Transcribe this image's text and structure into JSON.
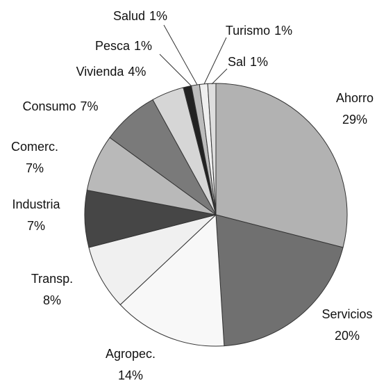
{
  "chart_data": {
    "type": "pie",
    "categories": [
      "Ahorro",
      "Servicios",
      "Agropec.",
      "Transp.",
      "Industria",
      "Comerc.",
      "Consumo",
      "Vivienda",
      "Pesca",
      "Salud",
      "Turismo",
      "Sal"
    ],
    "values": [
      29,
      20,
      14,
      8,
      7,
      7,
      7,
      4,
      1,
      1,
      1,
      1
    ],
    "value_labels": [
      "29%",
      "20%",
      "14%",
      "8%",
      "7%",
      "7%",
      "7%",
      "4%",
      "1%",
      "1%",
      "1%",
      "1%"
    ],
    "colors": [
      "#b2b2b2",
      "#707070",
      "#f8f8f8",
      "#f0f0f0",
      "#464646",
      "#b9b9b9",
      "#7a7a7a",
      "#d6d6d6",
      "#222222",
      "#bcbcbc",
      "#efefef",
      "#dedede"
    ]
  }
}
